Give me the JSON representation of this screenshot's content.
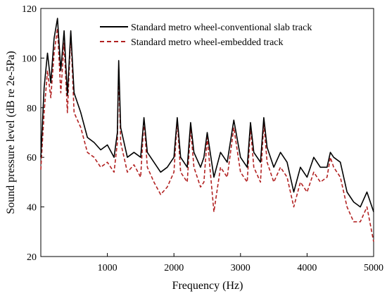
{
  "chart_data": {
    "type": "line",
    "title": "",
    "xlabel": "Frequency (Hz)",
    "ylabel": "Sound pressure level (dB re 2e-5Pa)",
    "xlim": [
      0,
      5000
    ],
    "ylim": [
      20,
      120
    ],
    "xticks": [
      1000,
      2000,
      3000,
      4000,
      5000
    ],
    "yticks": [
      20,
      40,
      60,
      80,
      100,
      120
    ],
    "xtick_labels": [
      "1000",
      "2000",
      "3000",
      "4000",
      "5000"
    ],
    "ytick_labels": [
      "20",
      "40",
      "60",
      "80",
      "100",
      "120"
    ],
    "grid": false,
    "legend_position": "top-right",
    "colors": {
      "conventional": "#000000",
      "embedded": "#b22222"
    },
    "series": [
      {
        "name": "Standard metro wheel-conventional slab track",
        "style": "solid",
        "x": [
          0,
          50,
          100,
          150,
          200,
          250,
          300,
          350,
          400,
          450,
          500,
          600,
          700,
          800,
          900,
          1000,
          1100,
          1150,
          1170,
          1200,
          1300,
          1400,
          1500,
          1550,
          1600,
          1700,
          1800,
          1900,
          2000,
          2050,
          2100,
          2200,
          2250,
          2300,
          2400,
          2450,
          2500,
          2600,
          2700,
          2800,
          2900,
          3000,
          3100,
          3150,
          3200,
          3300,
          3350,
          3400,
          3500,
          3600,
          3700,
          3800,
          3900,
          4000,
          4100,
          4200,
          4300,
          4350,
          4400,
          4500,
          4600,
          4700,
          4800,
          4900,
          5000
        ],
        "values": [
          60,
          88,
          102,
          90,
          108,
          116,
          95,
          111,
          85,
          111,
          86,
          78,
          68,
          66,
          63,
          65,
          60,
          70,
          99,
          72,
          60,
          62,
          60,
          76,
          62,
          58,
          54,
          56,
          60,
          76,
          60,
          56,
          74,
          62,
          56,
          60,
          70,
          52,
          62,
          58,
          75,
          60,
          56,
          74,
          62,
          58,
          76,
          64,
          56,
          62,
          58,
          46,
          56,
          52,
          60,
          56,
          56,
          62,
          60,
          58,
          46,
          42,
          40,
          46,
          38
        ]
      },
      {
        "name": "Standard metro wheel-embedded track",
        "style": "dashed",
        "x": [
          0,
          50,
          100,
          150,
          200,
          250,
          300,
          350,
          400,
          450,
          500,
          600,
          700,
          800,
          900,
          1000,
          1100,
          1150,
          1170,
          1200,
          1300,
          1400,
          1500,
          1550,
          1600,
          1700,
          1800,
          1900,
          2000,
          2050,
          2100,
          2200,
          2250,
          2300,
          2400,
          2450,
          2500,
          2600,
          2700,
          2800,
          2900,
          3000,
          3100,
          3150,
          3200,
          3300,
          3350,
          3400,
          3500,
          3600,
          3700,
          3800,
          3900,
          4000,
          4100,
          4200,
          4300,
          4350,
          4400,
          4500,
          4600,
          4700,
          4800,
          4900,
          5000
        ],
        "values": [
          55,
          78,
          95,
          84,
          102,
          112,
          86,
          106,
          78,
          110,
          78,
          72,
          62,
          60,
          56,
          58,
          54,
          66,
          96,
          66,
          54,
          57,
          52,
          75,
          56,
          50,
          45,
          48,
          54,
          75,
          54,
          50,
          72,
          56,
          48,
          50,
          68,
          38,
          56,
          52,
          72,
          54,
          50,
          72,
          56,
          50,
          74,
          58,
          50,
          56,
          52,
          40,
          50,
          46,
          54,
          50,
          52,
          60,
          56,
          52,
          40,
          34,
          34,
          40,
          26
        ]
      }
    ]
  }
}
